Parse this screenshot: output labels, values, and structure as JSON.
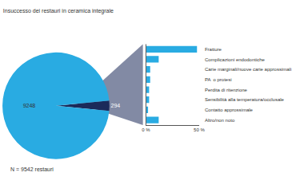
{
  "chart_data": [
    {
      "type": "pie",
      "title": "Insuccesso dei restauri in ceramica integrale",
      "annotations": [
        "N = 9542 restauri"
      ],
      "values": [
        294,
        9248
      ],
      "colors": [
        "#1b2a5a",
        "#29abe2"
      ],
      "data_labels": true
    },
    {
      "type": "bar",
      "orientation": "horizontal",
      "categories": [
        "Fratture",
        "Complicazioni endodontiche",
        "Carie marginali/nuove carie approssimali",
        "PA  o protesi",
        "Perdita di ritenzione",
        "Sensibilità alla temperatura/occlusale",
        "Contatto approssimale",
        "Altro/non noto"
      ],
      "values": [
        48,
        12,
        4,
        4,
        3,
        3,
        2,
        12
      ],
      "color": "#29abe2",
      "xlim": [
        0,
        50
      ],
      "xticks": [
        {
          "value": 0,
          "label": "0 %"
        },
        {
          "value": 50,
          "label": "50 %"
        }
      ],
      "grid": false
    }
  ]
}
